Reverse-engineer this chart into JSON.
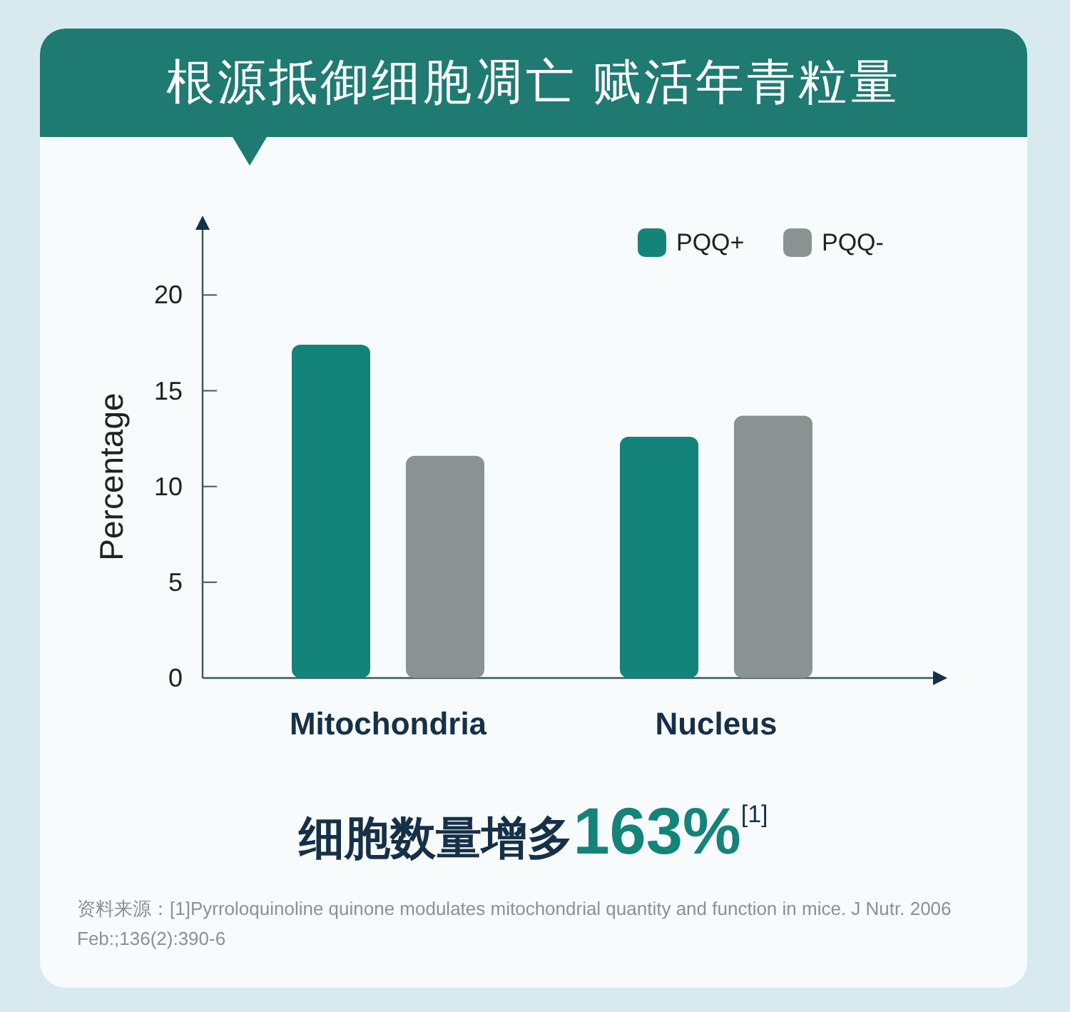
{
  "chart_data": {
    "type": "bar",
    "title": "根源抵御细胞凋亡 赋活年青粒量",
    "ylabel": "Percentage",
    "categories": [
      "Mitochondria",
      "Nucleus"
    ],
    "series": [
      {
        "name": "PQQ+",
        "color": "#14837a",
        "values": [
          17.4,
          12.6
        ]
      },
      {
        "name": "PQQ-",
        "color": "#8a9391",
        "values": [
          11.6,
          13.7
        ]
      }
    ],
    "ylim": [
      0,
      24
    ],
    "yticks": [
      0,
      5,
      10,
      15,
      20
    ],
    "legend": "top right",
    "annotations": [
      "细胞数量增多163%$^{[1]}$",
      "资料来源：[1]Pyrroloquinoline quinone modulates mitochondrial quantity and function in mice. J Nutr. 2006 Feb:;136(2):390-6"
    ]
  }
}
